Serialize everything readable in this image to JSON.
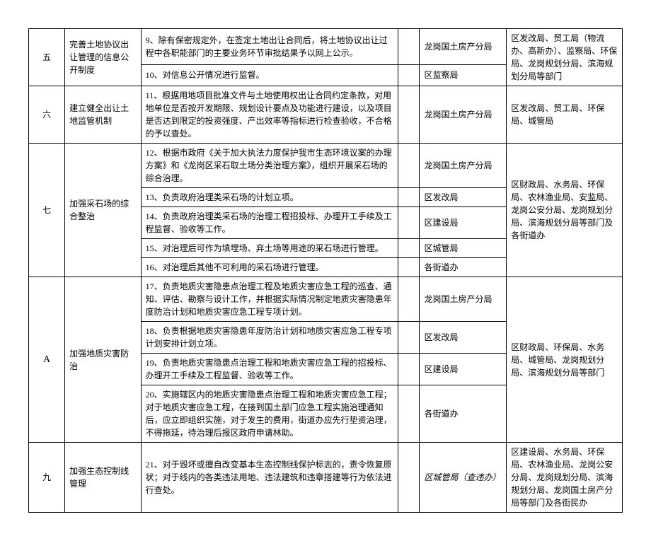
{
  "rows": [
    {
      "num": "五",
      "title": "完善土地协议出让管理的信息公开制度",
      "tasks": [
        {
          "text": "9、除有保密规定外，在签定土地出让合同后，将土地协议出让过程中各职能部门的主要业务环节审批结果予以网上公示。",
          "dept": "龙岗国土房产分局"
        },
        {
          "text": "10、对信息公开情况进行监督。",
          "dept": "区监察局"
        }
      ],
      "assist": "区发改局、贸工局（物流办、高新办）、监察局、环保局、龙岗规划分局、滨海规划分局等部门"
    },
    {
      "num": "六",
      "title": "建立健全出让土地监管机制",
      "tasks": [
        {
          "text": "11、根据用地项目批准文件与土地使用权出让合同约定条款，对用地单位是否按开发期限、规划设计要点及功能进行建设，以及项目是否达到限定的投资强度、产出效率等指标进行检查验收，不合格的予以查处。",
          "dept": "龙岗国土房产分局"
        }
      ],
      "assist": "区发改局、贸工局、环保局、城管局"
    },
    {
      "num": "七",
      "title": "加强采石场的综合整治",
      "tasks": [
        {
          "text": "12、根据市政府《关于加大执法力度保护我市生态环境议案的办理方案》和《龙岗区采石取土场分类治理方案》，组织开展采石场的综合治理。",
          "dept": "龙岗国土房产分局"
        },
        {
          "text": "13、负责政府治理类采石场的计划立项。",
          "dept": "区发改局"
        },
        {
          "text": "14、负责政府治理类采石场的治理工程招投标、办理开工手续及工程监督、验收等工作。",
          "dept": "区建设局"
        },
        {
          "text": "15、对治理后可作为填埋场、弃土场等用途的采石场进行管理。",
          "dept": "区城管局"
        },
        {
          "text": "16、对治理后其他不可利用的采石场进行管理。",
          "dept": "各街道办"
        }
      ],
      "assist": "区财政局、水务局、环保局、农林渔业局、安监局、龙岗公安分局、龙岗规划分局、滨海规划分局等部门及各街道办"
    },
    {
      "num": "A",
      "num_class": "serif-en",
      "title": "加强地质灾害防治",
      "tasks": [
        {
          "text": "17、负责地质灾害隐患点治理工程及地质灾害应急工程的巡查、通知、评估、勘察与设计工作，并根据实际情况制定地质灾害隐患年度防治计划和地质灾害应急工程专项计划。",
          "dept": "龙岗国土房产分局"
        },
        {
          "text": "18、负责根据地质灾害隐患年度防治计划和地质灾害应急工程专项计划安排计划立项。",
          "dept": "区发改局"
        },
        {
          "text": "19、负责地质灾害隐患点治理工程和地质灾害应急工程的招投标、办理开工手续及工程监督、验收等工作。",
          "dept": "区建设局"
        },
        {
          "text": "20、实施辖区内的地质灾害隐患点治理工程和地质灾害应急工程；对于地质灾害应急工程，在接到国土部门应急工程实施治理通知后，应立即组织实施，对于发生的费用，街道办应先行垫资治理，不得拖延，待治理后报区政府申请林助。",
          "dept": "各街道办"
        }
      ],
      "assist": "区财政局、环保局、水务局、城管局、龙岗规划分局、滨海规划分局等部门"
    },
    {
      "num": "九",
      "title": "加强生态控制线管理",
      "tasks": [
        {
          "text": "21、对于毁坏或擅自改变基本生态控制线保护标志的，责令恢复原状；对于线内的各类违法用地、违法建筑和违章搭建等行为依法进行查处。",
          "dept": "区城管局（查违办）",
          "italic": true
        }
      ],
      "assist": "区建设局、水务局、环保局、农林渔业局、龙岗公安分局、龙岗规划分局、滨海规划分局、龙岗国土房产分局等部门及各街民办"
    }
  ]
}
